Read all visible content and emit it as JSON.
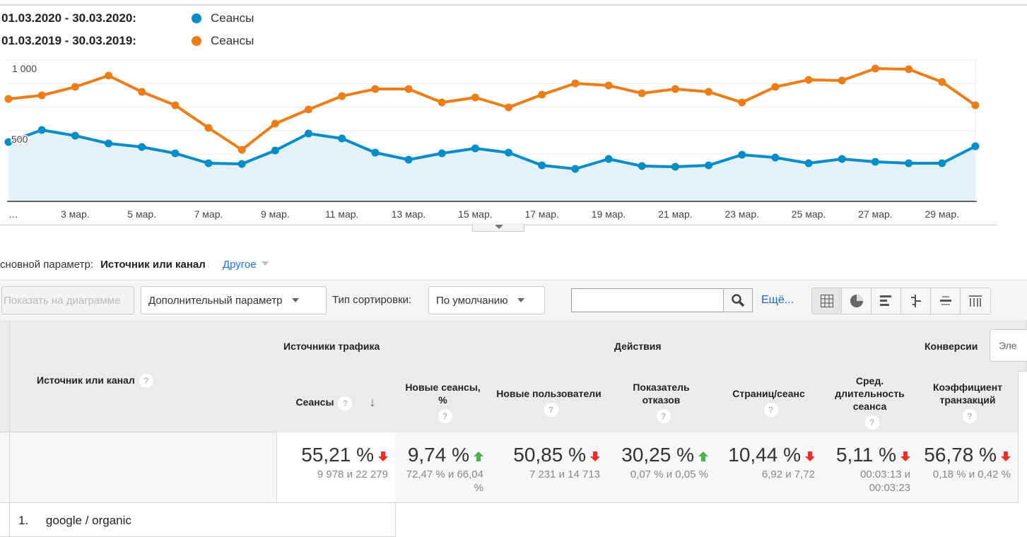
{
  "legend": [
    {
      "date": "01.03.2020 - 30.03.2020:",
      "label": "Сеансы",
      "color": "#058dc7"
    },
    {
      "date": "01.03.2019 - 30.03.2019:",
      "label": "Сеансы",
      "color": "#ed7e17"
    }
  ],
  "chart_data": {
    "type": "line",
    "title": "",
    "xlabel": "",
    "ylabel": "",
    "ylim": [
      0,
      1000
    ],
    "yticks": [
      "500",
      "1 000"
    ],
    "x": [
      1,
      2,
      3,
      4,
      5,
      6,
      7,
      8,
      9,
      10,
      11,
      12,
      13,
      14,
      15,
      16,
      17,
      18,
      19,
      20,
      21,
      22,
      23,
      24,
      25,
      26,
      27,
      28,
      29,
      30
    ],
    "xtick_labels": [
      "…",
      "3 мар.",
      "5 мар.",
      "7 мар.",
      "9 мар.",
      "11 мар.",
      "13 мар.",
      "15 мар.",
      "17 мар.",
      "19 мар.",
      "21 мар.",
      "23 мар.",
      "25 мар.",
      "27 мар.",
      "29 мар."
    ],
    "series": [
      {
        "name": "Сеансы (01.03.2020 - 30.03.2020)",
        "color": "#058dc7",
        "area": true,
        "values": [
          420,
          505,
          465,
          410,
          385,
          340,
          270,
          265,
          360,
          480,
          445,
          345,
          295,
          340,
          375,
          345,
          255,
          230,
          300,
          250,
          245,
          255,
          330,
          310,
          270,
          300,
          280,
          270,
          270,
          390
        ]
      },
      {
        "name": "Сеансы (01.03.2019 - 30.03.2019)",
        "color": "#ed7e17",
        "area": false,
        "values": [
          725,
          750,
          810,
          890,
          775,
          680,
          520,
          365,
          550,
          650,
          745,
          795,
          795,
          700,
          735,
          665,
          755,
          835,
          820,
          765,
          795,
          775,
          700,
          810,
          860,
          855,
          940,
          935,
          845,
          680
        ]
      }
    ]
  },
  "dimension": {
    "label": "сновной параметр:",
    "value": "Источник или канал",
    "other": "Другое"
  },
  "toolbar": {
    "plot_rows": "Показать на диаграмме",
    "secondary": "Дополнительный параметр",
    "sort_label": "Тип сортировки:",
    "sort_value": "По умолчанию",
    "search_value": "",
    "more": "Ещё..."
  },
  "table": {
    "dim_header": "Источник или канал",
    "groups": [
      "Источники трафика",
      "Действия",
      "Конверсии"
    ],
    "conv_select": "Эле",
    "columns": [
      {
        "label": "Сеансы",
        "total": "55,21 %",
        "compare": "9 978 и 22 279",
        "trend": "down"
      },
      {
        "label": "Новые сеансы, %",
        "total": "9,74 %",
        "compare": "72,47 % и 66,04 %",
        "trend": "up"
      },
      {
        "label": "Новые пользователи",
        "total": "50,85 %",
        "compare": "7 231 и 14 713",
        "trend": "down"
      },
      {
        "label": "Показатель отказов",
        "total": "30,25 %",
        "compare": "0,07 % и 0,05 %",
        "trend": "up"
      },
      {
        "label": "Страниц/сеанс",
        "total": "10,44 %",
        "compare": "6,92 и 7,72",
        "trend": "down"
      },
      {
        "label": "Сред. длительность сеанса",
        "total": "5,11 %",
        "compare": "00:03:13 и 00:03:23",
        "trend": "down"
      },
      {
        "label": "Коэффициент транзакций",
        "total": "56,78 %",
        "compare": "0,18 % и 0,42 %",
        "trend": "down"
      }
    ],
    "rows": [
      {
        "index": "1.",
        "name": "google / organic"
      }
    ]
  },
  "colors": {
    "up": "#4caf50",
    "down": "#f32b2b",
    "link": "#1a73e8"
  }
}
